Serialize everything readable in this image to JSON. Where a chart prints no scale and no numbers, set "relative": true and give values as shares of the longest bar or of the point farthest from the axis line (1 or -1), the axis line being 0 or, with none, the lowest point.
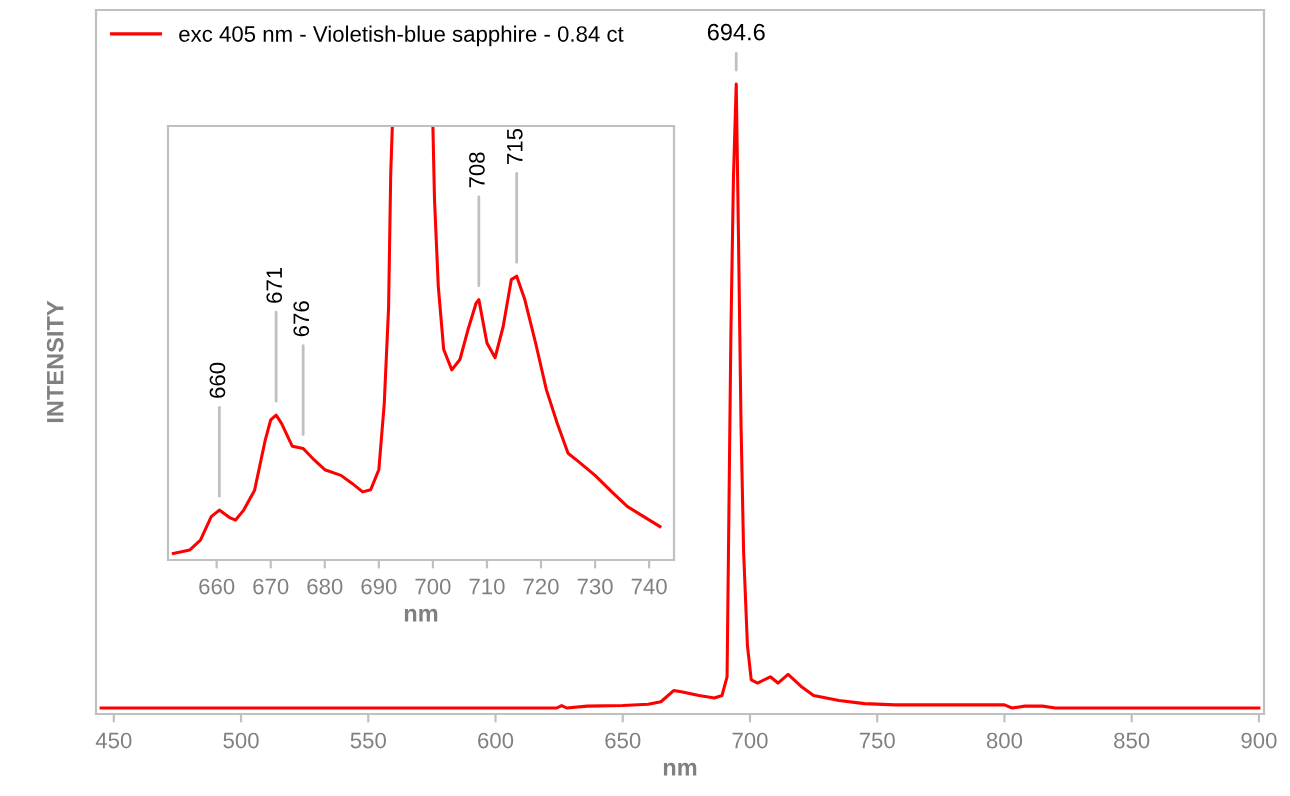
{
  "chart_data": [
    {
      "type": "line",
      "relative": true,
      "xlabel": "nm",
      "ylabel": "INTENSITY",
      "xlim": [
        443,
        902
      ],
      "xticks": [
        450,
        500,
        550,
        600,
        650,
        700,
        750,
        800,
        850,
        900
      ],
      "legend": "top left",
      "x": [
        445,
        500,
        550,
        600,
        624,
        626,
        628,
        636,
        650,
        660,
        665,
        670,
        673,
        680,
        686,
        689,
        691,
        692.5,
        693.5,
        694.6,
        695.5,
        696.5,
        697.5,
        699,
        700.5,
        703,
        708,
        711,
        715,
        720,
        725,
        735,
        745,
        757,
        800,
        803,
        808,
        815,
        820,
        860,
        900
      ],
      "series": [
        {
          "name": "exc 405 nm - Violetish-blue sapphire - 0.84 ct",
          "color": "#ff0000",
          "values": [
            0,
            0,
            0,
            0,
            0,
            0.004,
            0,
            0.003,
            0.004,
            0.006,
            0.01,
            0.028,
            0.026,
            0.02,
            0.016,
            0.02,
            0.05,
            0.6,
            0.85,
            1.0,
            0.75,
            0.45,
            0.25,
            0.1,
            0.045,
            0.04,
            0.05,
            0.04,
            0.054,
            0.035,
            0.02,
            0.012,
            0.007,
            0.005,
            0.005,
            0.0,
            0.003,
            0.003,
            0.0,
            0.0,
            0.0
          ]
        }
      ],
      "annotations": [
        {
          "text": "694.6",
          "x": 694.6,
          "y": 1.0
        }
      ]
    },
    {
      "type": "line",
      "relative": true,
      "xlabel": "nm",
      "xlim": [
        651,
        744.6
      ],
      "xticks": [
        660,
        670,
        680,
        690,
        700,
        710,
        720,
        730,
        740
      ],
      "x": [
        652,
        655,
        657,
        659,
        660.5,
        662.5,
        663.5,
        665,
        667,
        669,
        670,
        671,
        672,
        674,
        676,
        678,
        680,
        683,
        685,
        687,
        688.5,
        690,
        691,
        691.8,
        692.2,
        692.5,
        696,
        700,
        700.3,
        701,
        702,
        703.5,
        705,
        706.5,
        708,
        708.5,
        710,
        711.5,
        713,
        714.5,
        715.5,
        717,
        719,
        721,
        723,
        725,
        727,
        730,
        733,
        736,
        739,
        742
      ],
      "series": [
        {
          "color": "#ff0000",
          "values": [
            0.015,
            0.023,
            0.046,
            0.1,
            0.115,
            0.097,
            0.092,
            0.115,
            0.16,
            0.277,
            0.323,
            0.334,
            0.315,
            0.262,
            0.257,
            0.231,
            0.208,
            0.195,
            0.177,
            0.157,
            0.162,
            0.208,
            0.36,
            0.58,
            0.89,
            1.0,
            null,
            1.0,
            0.83,
            0.63,
            0.485,
            0.438,
            0.462,
            0.531,
            0.592,
            0.6,
            0.5,
            0.466,
            0.538,
            0.646,
            0.654,
            0.6,
            0.5,
            0.392,
            0.315,
            0.246,
            0.226,
            0.195,
            0.158,
            0.123,
            0.1,
            0.077
          ]
        }
      ],
      "annotations": [
        {
          "text": "660",
          "x": 660.5,
          "y": 0.115
        },
        {
          "text": "671",
          "x": 671,
          "y": 0.334
        },
        {
          "text": "676",
          "x": 676,
          "y": 0.257
        },
        {
          "text": "708",
          "x": 708.5,
          "y": 0.6
        },
        {
          "text": "715",
          "x": 715.5,
          "y": 0.654
        }
      ]
    }
  ]
}
